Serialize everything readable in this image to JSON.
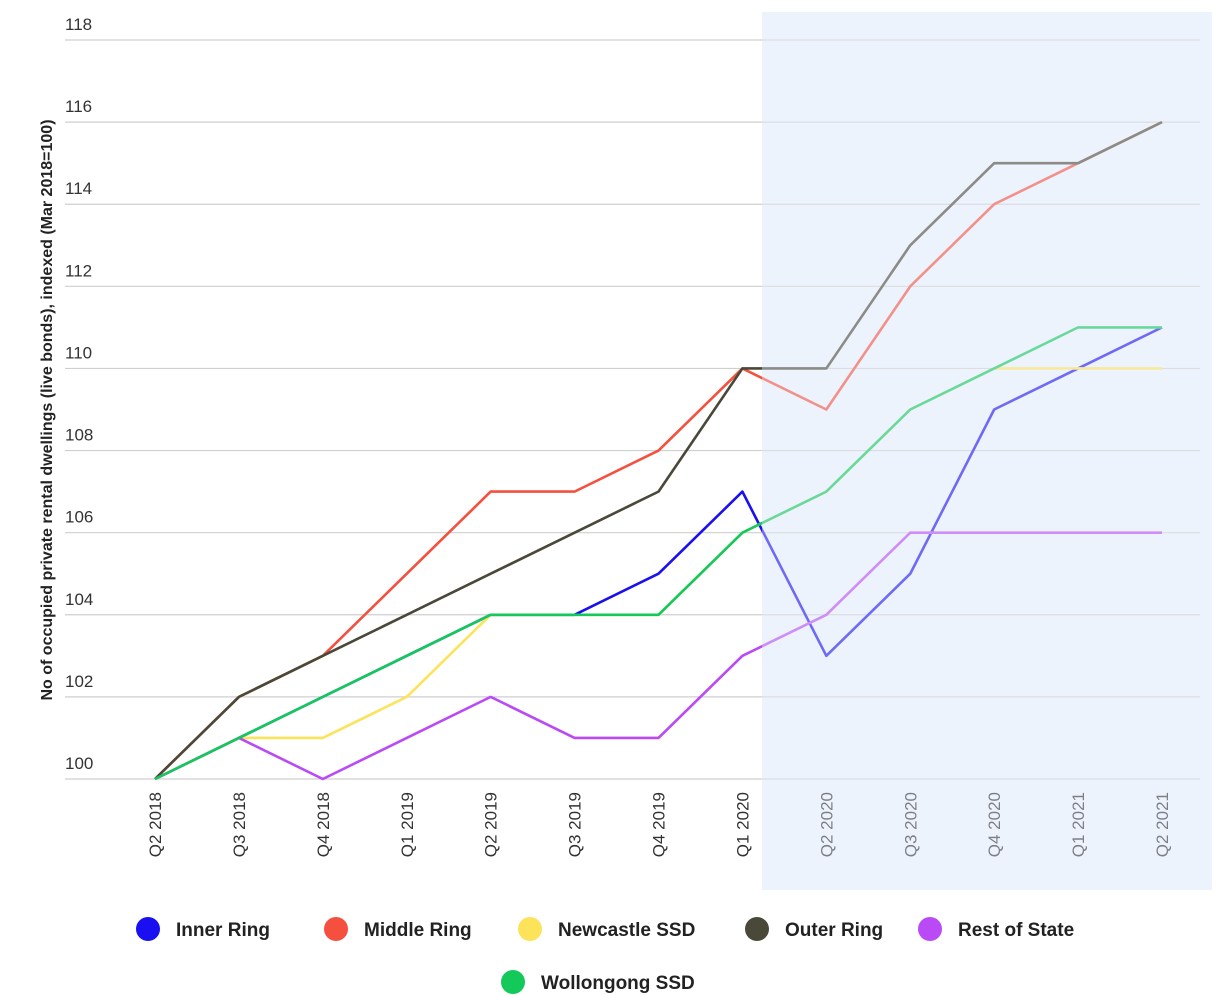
{
  "chart_data": {
    "type": "line",
    "y_label": "No of occupied private rental dwellings (live bonds), indexed (Mar 2018=100)",
    "categories": [
      "Q2 2018",
      "Q3 2018",
      "Q4 2018",
      "Q1 2019",
      "Q2 2019",
      "Q3 2019",
      "Q4 2019",
      "Q1 2020",
      "Q2 2020",
      "Q3 2020",
      "Q4 2020",
      "Q1 2021",
      "Q2 2021"
    ],
    "series": [
      {
        "name": "Inner Ring",
        "color": "#1a0ff0",
        "values": [
          100,
          101,
          102,
          103,
          104,
          104,
          105,
          107,
          103,
          105,
          109,
          110,
          111
        ]
      },
      {
        "name": "Middle Ring",
        "color": "#f5503f",
        "values": [
          100,
          102,
          103,
          105,
          107,
          107,
          108,
          110,
          109,
          112,
          114,
          115,
          116
        ]
      },
      {
        "name": "Newcastle SSD",
        "color": "#fde35a",
        "values": [
          100,
          101,
          101,
          102,
          104,
          104,
          104,
          106,
          107,
          109,
          110,
          110,
          110
        ]
      },
      {
        "name": "Outer Ring",
        "color": "#4a4838",
        "values": [
          100,
          102,
          103,
          104,
          105,
          106,
          107,
          110,
          110,
          113,
          115,
          115,
          116
        ]
      },
      {
        "name": "Rest of State",
        "color": "#b94af5",
        "values": [
          100,
          101,
          100,
          101,
          102,
          101,
          101,
          103,
          104,
          106,
          106,
          106,
          106
        ]
      },
      {
        "name": "Wollongong SSD",
        "color": "#12c95a",
        "values": [
          100,
          101,
          102,
          103,
          104,
          104,
          104,
          106,
          107,
          109,
          110,
          111,
          111
        ]
      }
    ],
    "ylim": [
      100,
      118
    ],
    "yticks": [
      100,
      102,
      104,
      106,
      108,
      110,
      112,
      114,
      116,
      118
    ],
    "grid": true
  }
}
